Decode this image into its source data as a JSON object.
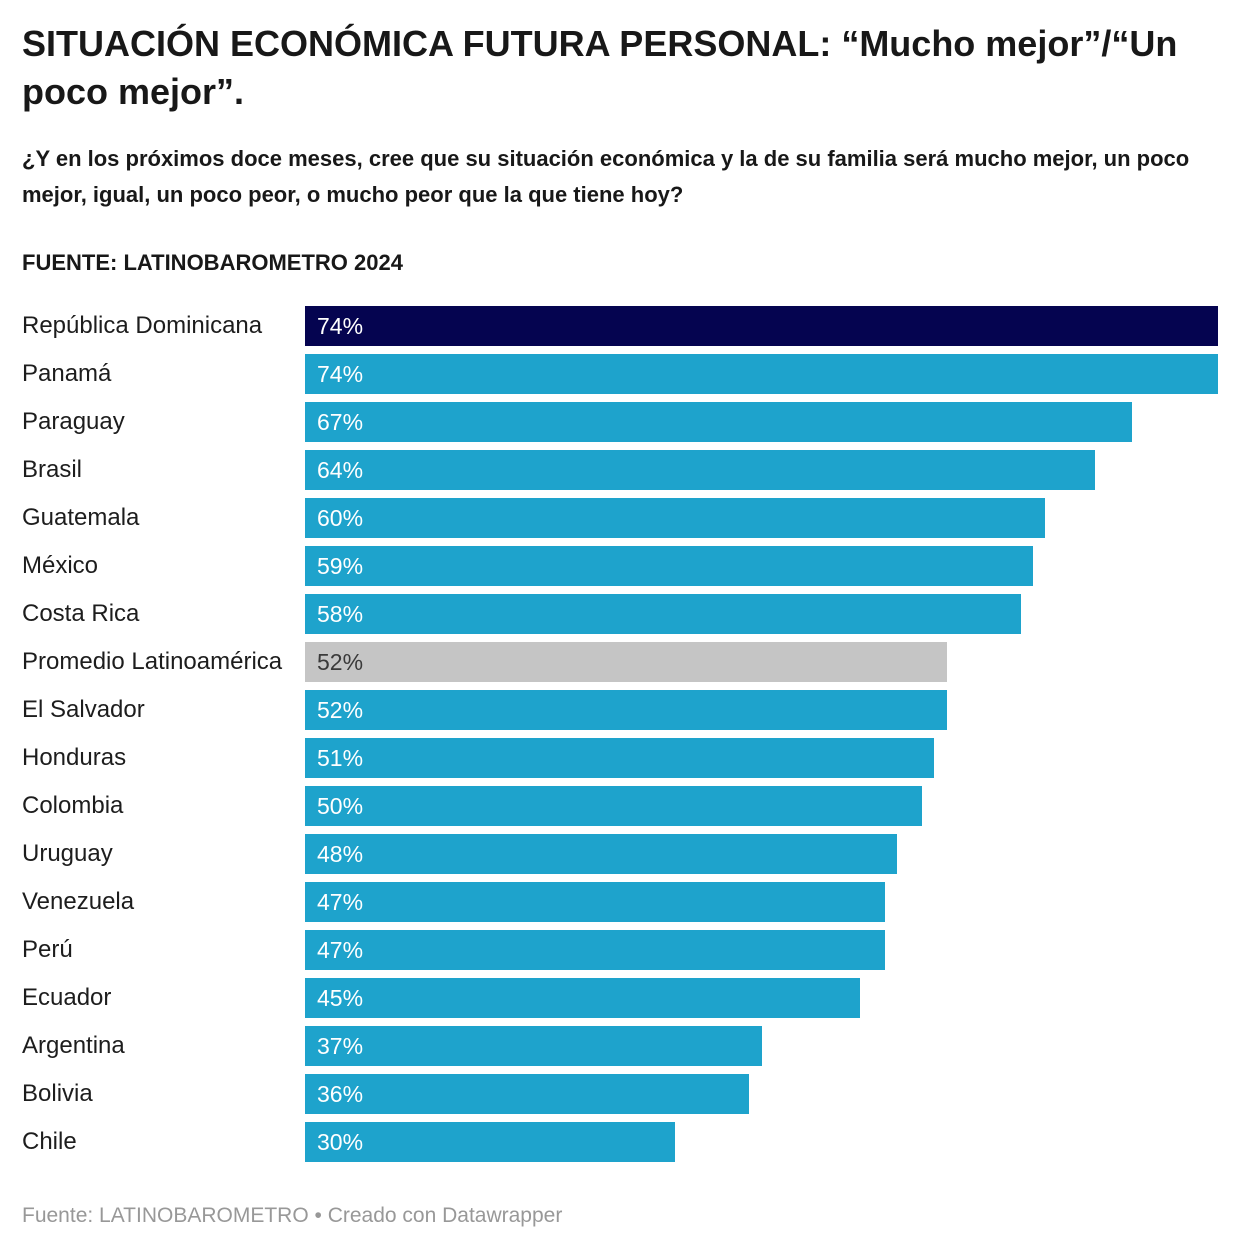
{
  "header": {
    "title": "SITUACIÓN ECONÓMICA FUTURA PERSONAL: “Mucho mejor”/“Un poco mejor”.",
    "subtitle": "¿Y en los próximos doce meses, cree que su situación económica y la de su familia será mucho mejor, un poco mejor, igual, un poco peor, o mucho peor que la que tiene hoy?",
    "source_line": "FUENTE: LATINOBAROMETRO 2024"
  },
  "footer": {
    "attribution": "Fuente: LATINOBAROMETRO • Creado con Datawrapper"
  },
  "colors": {
    "highlight": "#050450",
    "default": "#1ea3cc",
    "average": "#c5c5c5",
    "value_on_color": "#ffffff",
    "value_on_average": "#3a3a3a"
  },
  "chart_data": {
    "type": "bar",
    "orientation": "horizontal",
    "title": "SITUACIÓN ECONÓMICA FUTURA PERSONAL: “Mucho mejor”/“Un poco mejor”.",
    "xlabel": "",
    "ylabel": "",
    "value_suffix": "%",
    "xlim": [
      0,
      74
    ],
    "grid": false,
    "legend": false,
    "categories": [
      "República Dominicana",
      "Panamá",
      "Paraguay",
      "Brasil",
      "Guatemala",
      "México",
      "Costa Rica",
      "Promedio Latinoamérica",
      "El Salvador",
      "Honduras",
      "Colombia",
      "Uruguay",
      "Venezuela",
      "Perú",
      "Ecuador",
      "Argentina",
      "Bolivia",
      "Chile"
    ],
    "values": [
      74,
      74,
      67,
      64,
      60,
      59,
      58,
      52,
      52,
      51,
      50,
      48,
      47,
      47,
      45,
      37,
      36,
      30
    ],
    "rows": [
      {
        "label": "República Dominicana",
        "value": 74,
        "display": "74%",
        "color": "highlight"
      },
      {
        "label": "Panamá",
        "value": 74,
        "display": "74%",
        "color": "default"
      },
      {
        "label": "Paraguay",
        "value": 67,
        "display": "67%",
        "color": "default"
      },
      {
        "label": "Brasil",
        "value": 64,
        "display": "64%",
        "color": "default"
      },
      {
        "label": "Guatemala",
        "value": 60,
        "display": "60%",
        "color": "default"
      },
      {
        "label": "México",
        "value": 59,
        "display": "59%",
        "color": "default"
      },
      {
        "label": "Costa Rica",
        "value": 58,
        "display": "58%",
        "color": "default"
      },
      {
        "label": "Promedio Latinoamérica",
        "value": 52,
        "display": "52%",
        "color": "average"
      },
      {
        "label": "El Salvador",
        "value": 52,
        "display": "52%",
        "color": "default"
      },
      {
        "label": "Honduras",
        "value": 51,
        "display": "51%",
        "color": "default"
      },
      {
        "label": "Colombia",
        "value": 50,
        "display": "50%",
        "color": "default"
      },
      {
        "label": "Uruguay",
        "value": 48,
        "display": "48%",
        "color": "default"
      },
      {
        "label": "Venezuela",
        "value": 47,
        "display": "47%",
        "color": "default"
      },
      {
        "label": "Perú",
        "value": 47,
        "display": "47%",
        "color": "default"
      },
      {
        "label": "Ecuador",
        "value": 45,
        "display": "45%",
        "color": "default"
      },
      {
        "label": "Argentina",
        "value": 37,
        "display": "37%",
        "color": "default"
      },
      {
        "label": "Bolivia",
        "value": 36,
        "display": "36%",
        "color": "default"
      },
      {
        "label": "Chile",
        "value": 30,
        "display": "30%",
        "color": "default"
      }
    ]
  }
}
